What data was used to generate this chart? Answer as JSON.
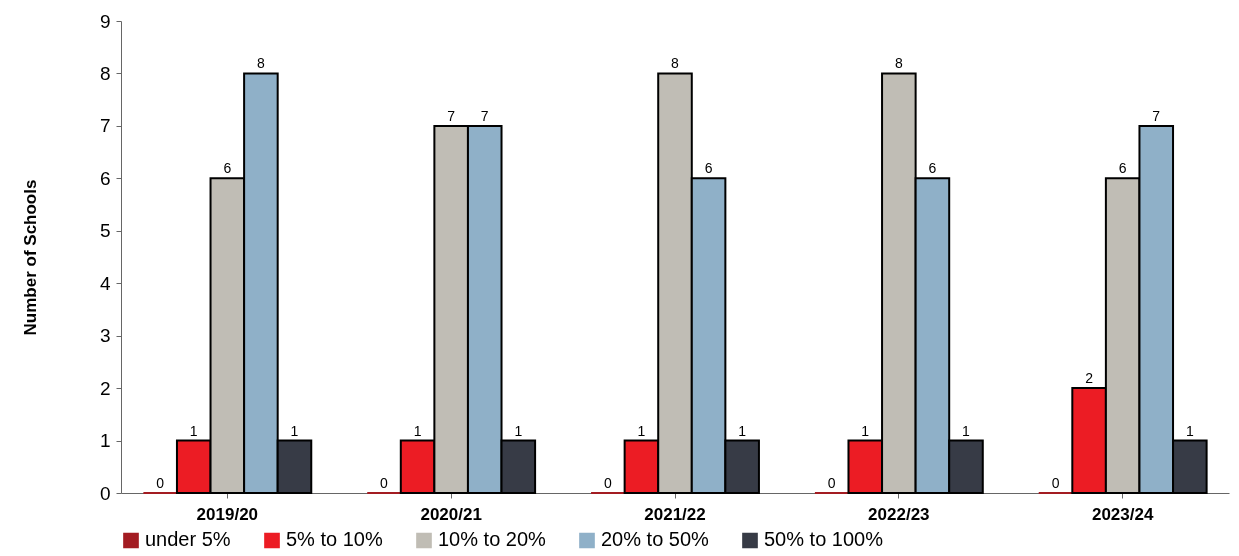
{
  "chart_data": {
    "type": "bar",
    "ylabel": "Number of Schools",
    "categories": [
      "2019/20",
      "2020/21",
      "2021/22",
      "2022/23",
      "2023/24"
    ],
    "series": [
      {
        "name": "under 5%",
        "color": "#a31c22",
        "values": [
          0,
          0,
          0,
          0,
          0
        ]
      },
      {
        "name": "5% to 10%",
        "color": "#ec1c24",
        "values": [
          1,
          1,
          1,
          1,
          2
        ]
      },
      {
        "name": "10% to 20%",
        "color": "#c0bdb5",
        "values": [
          6,
          7,
          8,
          8,
          6
        ]
      },
      {
        "name": "20% to 50%",
        "color": "#8fb0c8",
        "values": [
          8,
          7,
          6,
          6,
          7
        ]
      },
      {
        "name": "50% to 100%",
        "color": "#373b46",
        "values": [
          1,
          1,
          1,
          1,
          1
        ]
      }
    ],
    "ylim": [
      0,
      9
    ],
    "yticks": [
      0,
      1,
      2,
      3,
      4,
      5,
      6,
      7,
      8,
      9
    ],
    "grid": false,
    "legend": "bottom",
    "data_labels": true
  }
}
